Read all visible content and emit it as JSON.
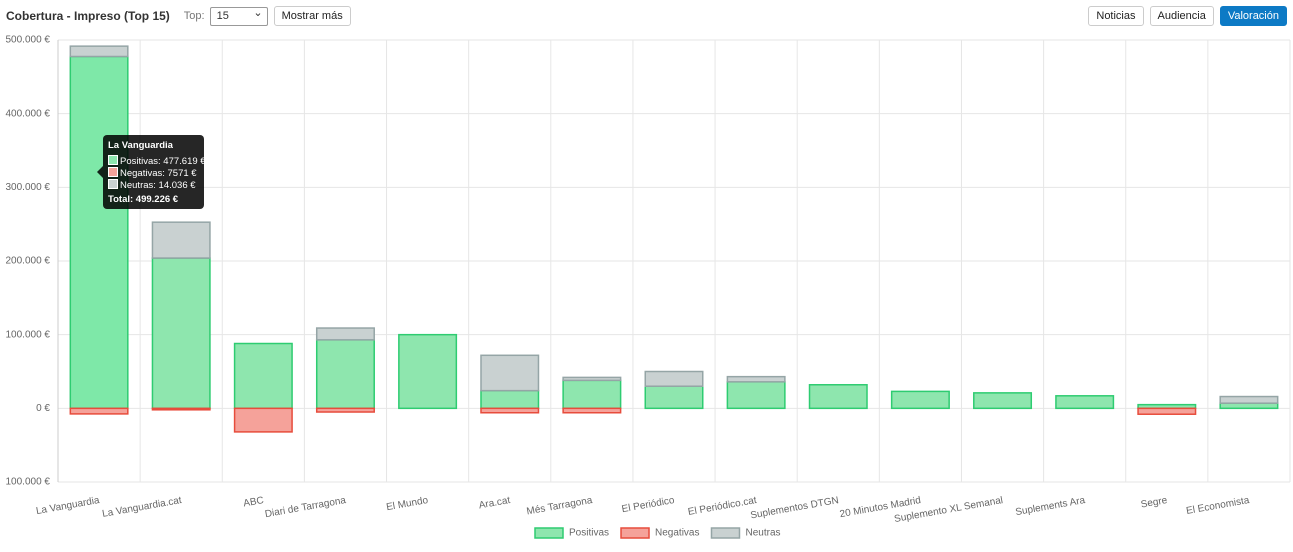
{
  "header": {
    "title": "Cobertura - Impreso (Top 15)",
    "top_label": "Top:",
    "top_value": "15",
    "more_button": "Mostrar más",
    "tabs": [
      "Noticias",
      "Audiencia",
      "Valoración"
    ]
  },
  "tooltip": {
    "title": "La Vanguardia",
    "lines": [
      "Positivas: 477.619 €",
      "Negativas: 7571 €",
      "Neutras: 14.036 €"
    ],
    "total": "Total: 499.226 €"
  },
  "chart_data": {
    "type": "stacked-bar",
    "categories": [
      "La Vanguardia",
      "La Vanguardia.cat",
      "ABC",
      "Diari de Tarragona",
      "El Mundo",
      "Ara.cat",
      "Més Tarragona",
      "El Periódico",
      "El Periódico.cat",
      "Suplementos DTGN",
      "20 Minutos Madrid",
      "Suplemento XL Semanal",
      "Suplements Ara",
      "Segre",
      "El Economista"
    ],
    "series": [
      {
        "name": "Positivas",
        "color": "#2ecc71",
        "values": [
          477619,
          204000,
          88000,
          93000,
          100000,
          24000,
          38000,
          30000,
          36000,
          32000,
          23000,
          21000,
          17000,
          5000,
          7000
        ]
      },
      {
        "name": "Negativas",
        "color": "#e74c3c",
        "values": [
          -7571,
          -2000,
          -32000,
          -5000,
          0,
          -6000,
          -6000,
          0,
          0,
          0,
          0,
          0,
          0,
          -8000,
          0
        ]
      },
      {
        "name": "Neutras",
        "color": "#95a5a6",
        "values": [
          14036,
          48700,
          0,
          16000,
          0,
          48000,
          4000,
          20000,
          7000,
          0,
          0,
          0,
          0,
          0,
          9000
        ]
      }
    ],
    "ylim": [
      -100000,
      500000
    ],
    "yticks": [
      {
        "value": -100000,
        "label": "100.000 €"
      },
      {
        "value": 0,
        "label": "0 €"
      },
      {
        "value": 100000,
        "label": "100.000 €"
      },
      {
        "value": 200000,
        "label": "200.000 €"
      },
      {
        "value": 300000,
        "label": "300.000 €"
      },
      {
        "value": 400000,
        "label": "400.000 €"
      },
      {
        "value": 500000,
        "label": "500.000 €"
      }
    ],
    "grid": true
  }
}
